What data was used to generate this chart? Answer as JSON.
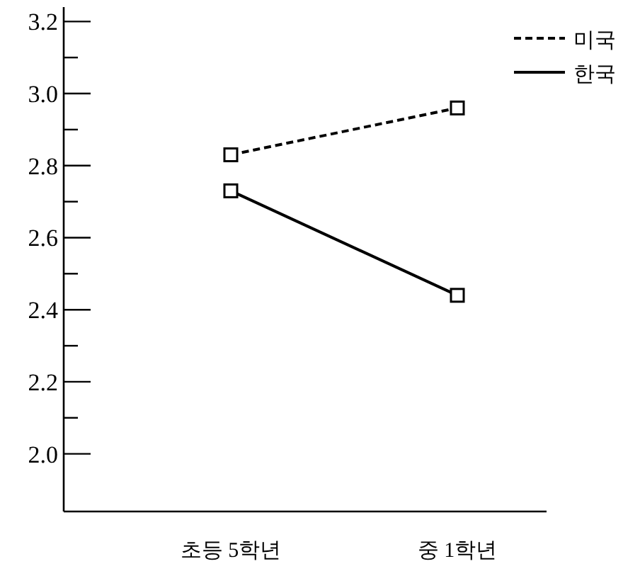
{
  "chart_data": {
    "type": "line",
    "categories": [
      "초등 5학년",
      "중 1학년"
    ],
    "series": [
      {
        "name": "미국",
        "color": "#000000",
        "values": [
          2.83,
          2.96
        ],
        "line_style": "dashed"
      },
      {
        "name": "한국",
        "color": "#000000",
        "values": [
          2.73,
          2.44
        ],
        "line_style": "solid"
      }
    ],
    "ylim": [
      1.84,
      3.24
    ],
    "yticks": [
      {
        "value": 2.0,
        "label": "2.0"
      },
      {
        "value": 2.1,
        "label": null
      },
      2.2,
      {
        "value": 2.3,
        "label": null
      },
      2.4,
      {
        "value": 2.5,
        "label": null
      },
      2.6,
      {
        "value": 2.7,
        "label": null
      },
      2.8,
      {
        "value": 2.9,
        "label": null
      },
      {
        "value": 3.0,
        "label": "3.0"
      },
      {
        "value": 3.1,
        "label": null
      },
      3.2
    ],
    "marker": "square",
    "legend": "top right"
  }
}
